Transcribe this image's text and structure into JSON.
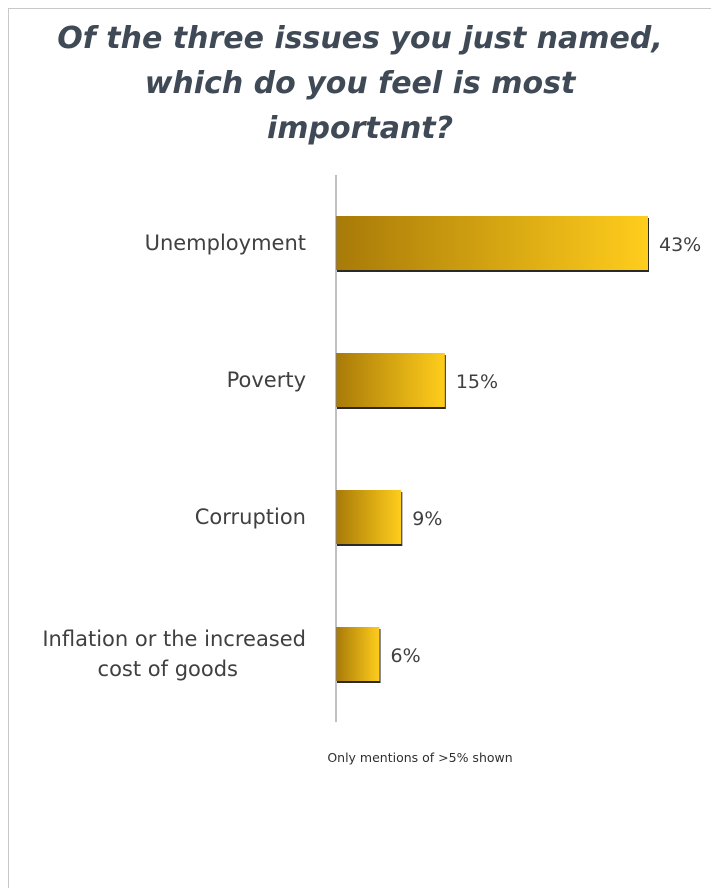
{
  "chart_data": {
    "type": "bar",
    "orientation": "horizontal",
    "title": "Of the three issues you just named, which do you feel is most important?",
    "categories": [
      "Unemployment",
      "Poverty",
      "Corruption",
      "Inflation or the increased cost of goods"
    ],
    "values": [
      43,
      15,
      9,
      6
    ],
    "value_labels": [
      "43%",
      "15%",
      "9%",
      "6%"
    ],
    "unit": "%",
    "grid": false,
    "legend": "none",
    "colors": {
      "bar_dark": "#a87a08",
      "bar_light": "#ffcd1c",
      "bar_edge": "#2a2a2a",
      "axis": "#808080",
      "title": "#3f4a56",
      "text": "#404040"
    }
  },
  "title_lines": [
    "Of the three issues you just named,",
    "which do you feel is most",
    "important?"
  ],
  "footnote": "Only mentions of >5% shown"
}
